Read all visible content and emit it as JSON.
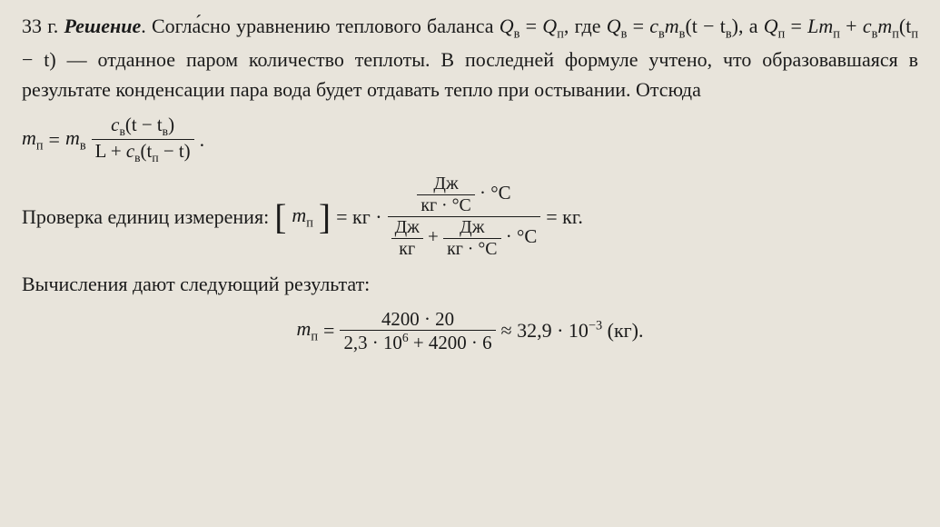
{
  "p1_lead": "33 г. ",
  "p1_sol": "Решение",
  "p1_rest_a": ". Согла́сно уравнению теплового баланса ",
  "p1_rest_b": "Q",
  "p1_sub_v": "в",
  "p1_eq": " = ",
  "p1_Q2": "Q",
  "p1_sub_p": "п",
  "p1_rest_c": ", где ",
  "p1_eq1_lhs": "Q",
  "p1_eq1_sub": "в",
  "p1_eq1_mid": " = ",
  "p1_eq1_c": "c",
  "p1_eq1_csub": "в",
  "p1_eq1_m": "m",
  "p1_eq1_msub": "в",
  "p1_eq1_paren": "(t − t",
  "p1_eq1_tsub": "в",
  "p1_eq1_close": "), а ",
  "p1_eq2_Q": "Q",
  "p1_eq2_Qs": "п",
  "p1_eq2_eq": " = ",
  "p1_eq2_Lm": "Lm",
  "p1_eq2_Lms": "п",
  "p1_eq2_plus": " + ",
  "p1_eq2_c": "c",
  "p1_eq2_cs": "в",
  "p1_eq2_m": "m",
  "p1_eq2_ms": "п",
  "p1_eq2_paren": "(t",
  "p1_eq2_ts": "п",
  "p1_eq2_rest": " − t) — отданное паром количество теплоты. В последней формуле учтено, что образовавшаяся в результате конденсации пара вода будет отдавать тепло при остывании. Отсюда",
  "eqA_lhs_m": "m",
  "eqA_lhs_s": "п",
  "eqA_eq": " = ",
  "eqA_m2": "m",
  "eqA_m2s": "в",
  "eqA_num_c": "c",
  "eqA_num_cs": "в",
  "eqA_num_rest": "(t − t",
  "eqA_num_ts": "в",
  "eqA_num_close": ")",
  "eqA_den_L": "L + ",
  "eqA_den_c": "c",
  "eqA_den_cs": "в",
  "eqA_den_rest": "(t",
  "eqA_den_ts": "п",
  "eqA_den_close": " − t)",
  "eqA_dot": ".",
  "p2_a": "Проверка единиц измерения: ",
  "p2_br_l": "[",
  "p2_m": "m",
  "p2_ms": "п",
  "p2_br_r": "]",
  "p2_eq": " = кг · ",
  "units_J": "Дж",
  "units_kgC": "кг · °C",
  "units_C": "°C",
  "units_Jkg": "Дж",
  "units_kg": "кг",
  "units_plus": " + ",
  "p2_end": " = кг.",
  "p3": "Вычисления дают следующий результат:",
  "eqB_lhs_m": "m",
  "eqB_lhs_s": "п",
  "eqB_eq": " = ",
  "eqB_num": "4200 · 20",
  "eqB_den_a": "2,3 · 10",
  "eqB_den_exp": "6",
  "eqB_den_b": " + 4200 · 6",
  "eqB_approx": " ≈ 32,9 · 10",
  "eqB_exp": "−3",
  "eqB_unit": "  (кг)."
}
